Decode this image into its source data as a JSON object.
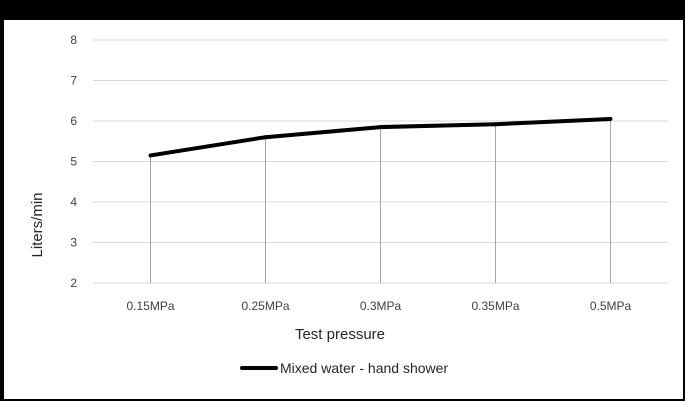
{
  "chart_data": {
    "type": "line",
    "categories": [
      "0.15MPa",
      "0.25MPa",
      "0.3MPa",
      "0.35MPa",
      "0.5MPa"
    ],
    "series": [
      {
        "name": "Mixed water - hand shower",
        "values": [
          5.15,
          5.6,
          5.85,
          5.92,
          6.05
        ],
        "color": "#000000"
      }
    ],
    "xlabel": "Test pressure",
    "ylabel": "Liters/min",
    "ylim": [
      2,
      8
    ],
    "yticks": [
      2,
      3,
      4,
      5,
      6,
      7,
      8
    ],
    "grid": true,
    "drop_lines": true,
    "legend_position": "bottom",
    "colors": {
      "background": "#ffffff",
      "frame": "#000000",
      "grid": "#d9d9d9",
      "drop_line": "#a6a6a6"
    }
  }
}
